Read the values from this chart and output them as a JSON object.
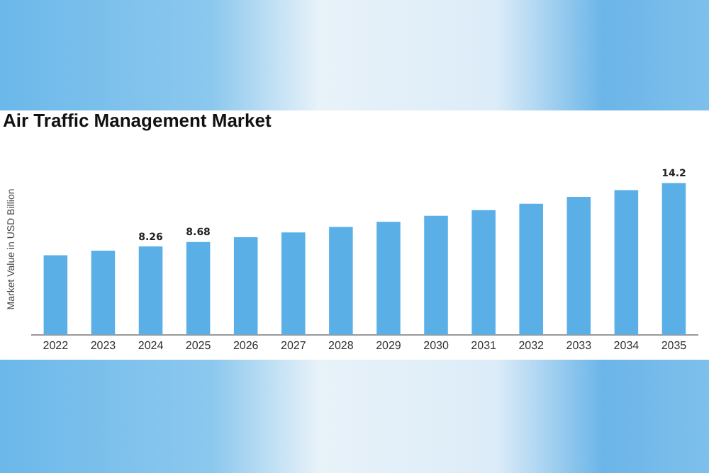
{
  "chart_data": {
    "type": "bar",
    "title": "Air Traffic Management Market",
    "ylabel": "Market Value in USD Billion",
    "categories": [
      "2022",
      "2023",
      "2024",
      "2025",
      "2026",
      "2027",
      "2028",
      "2029",
      "2030",
      "2031",
      "2032",
      "2033",
      "2034",
      "2035"
    ],
    "values": [
      7.44,
      7.86,
      8.26,
      8.68,
      9.13,
      9.58,
      10.08,
      10.56,
      11.13,
      11.66,
      12.25,
      12.9,
      13.53,
      14.2
    ],
    "value_labels": [
      null,
      null,
      "8.26",
      "8.68",
      null,
      null,
      null,
      null,
      null,
      null,
      null,
      null,
      null,
      "14.2"
    ],
    "color": "#5ab0e6",
    "grid": false,
    "legend": false
  }
}
